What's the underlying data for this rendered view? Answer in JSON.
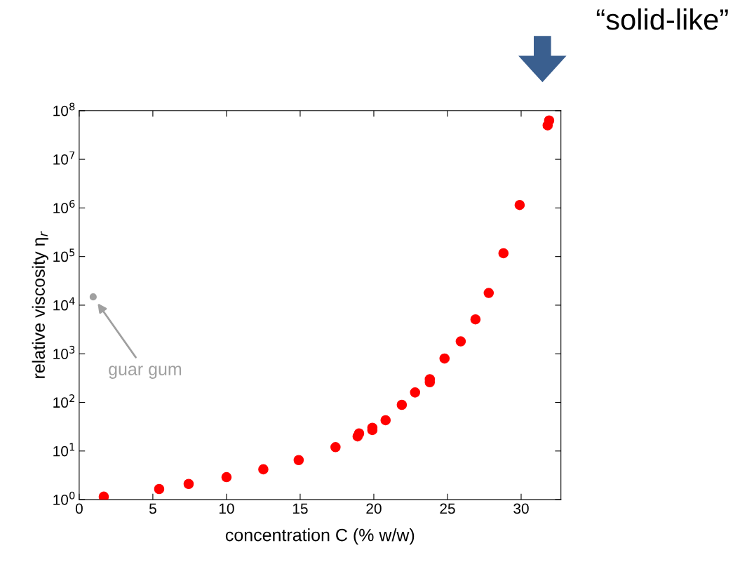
{
  "chart_data": {
    "type": "scatter",
    "xlabel": "concentration C (% w/w)",
    "ylabel": "relative viscosity η$_{r}$",
    "log": "y",
    "xlim": [
      0,
      32.7
    ],
    "ylim": [
      1,
      100000000
    ],
    "xticks": [
      0,
      5,
      10,
      15,
      20,
      25,
      30
    ],
    "yticks": [
      {
        "value": 1,
        "label": "10$^{0}$"
      },
      {
        "value": 10,
        "label": "10$^{1}$"
      },
      {
        "value": 100,
        "label": "10$^{2}$"
      },
      {
        "value": 1000,
        "label": "10$^{3}$"
      },
      {
        "value": 10000,
        "label": "10$^{4}$"
      },
      {
        "value": 100000,
        "label": "10$^{5}$"
      },
      {
        "value": 1000000,
        "label": "10$^{6}$"
      },
      {
        "value": 10000000,
        "label": "10$^{7}$"
      },
      {
        "value": 100000000,
        "label": "10$^{8}$"
      }
    ],
    "grid": false,
    "legend": false,
    "marker": "circle",
    "series": [
      {
        "color": "#ff0000",
        "x": [
          1.67,
          5.43,
          7.43,
          10,
          12.5,
          14.9,
          17.4,
          18.9,
          19,
          19.9,
          19.9,
          20.8,
          21.9,
          22.8,
          23.8,
          23.8,
          24.8,
          25.9,
          26.9,
          27.8,
          28.8,
          29.9,
          31.8,
          31.9
        ],
        "values": [
          1.15,
          1.65,
          2.1,
          2.9,
          4.2,
          6.5,
          12,
          20,
          23,
          27,
          30,
          43,
          89,
          160,
          260,
          300,
          800,
          1800,
          5100,
          17800,
          117000,
          1150000,
          50000000,
          63000000
        ]
      },
      {
        "color": "#a0a0a0",
        "x": [
          0.95
        ],
        "values": [
          14800
        ]
      }
    ],
    "annotations": [
      "guar gum",
      "“solid-like”"
    ]
  }
}
